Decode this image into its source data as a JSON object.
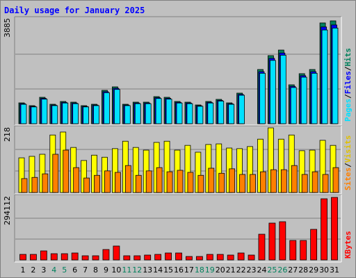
{
  "chart_data": [
    {
      "type": "bar",
      "title": "Daily usage for January 2025",
      "ylim": [
        0,
        3885
      ],
      "yticks": [
        3885
      ],
      "legend_separator": "/",
      "series": [
        {
          "name": "Hits",
          "color": "#00805c",
          "values": [
            777,
            673,
            984,
            725,
            829,
            803,
            673,
            725,
            1243,
            1373,
            725,
            803,
            803,
            1010,
            984,
            829,
            803,
            699,
            829,
            907,
            777,
            1140,
            0,
            2020,
            2538,
            2745,
            1450,
            1865,
            2020,
            3756,
            3833
          ]
        },
        {
          "name": "Files",
          "color": "#0000ff",
          "values": [
            746,
            646,
            945,
            696,
            796,
            771,
            646,
            696,
            1193,
            1318,
            696,
            771,
            771,
            970,
            945,
            796,
            771,
            671,
            796,
            871,
            746,
            1094,
            0,
            1939,
            2436,
            2635,
            1392,
            1790,
            1939,
            3606,
            3680
          ]
        },
        {
          "name": "Pages",
          "color": "#00e0ff",
          "values": [
            723,
            626,
            915,
            674,
            771,
            747,
            626,
            674,
            1156,
            1277,
            674,
            747,
            747,
            939,
            915,
            771,
            747,
            650,
            771,
            844,
            723,
            1060,
            0,
            1879,
            2360,
            2553,
            1349,
            1734,
            1879,
            3493,
            3565
          ]
        }
      ]
    },
    {
      "type": "bar",
      "ylim": [
        0,
        218
      ],
      "yticks": [
        218
      ],
      "legend_separator": "/",
      "series": [
        {
          "name": "Visits",
          "color": "#ffff00",
          "values": [
            117,
            122,
            129,
            194,
            204,
            152,
            108,
            126,
            119,
            148,
            173,
            152,
            143,
            169,
            173,
            143,
            159,
            136,
            162,
            164,
            150,
            148,
            155,
            180,
            218,
            180,
            194,
            141,
            143,
            176,
            159
          ]
        },
        {
          "name": "Sites",
          "color": "#ff8000",
          "values": [
            47,
            51,
            63,
            129,
            143,
            84,
            49,
            58,
            73,
            68,
            91,
            58,
            73,
            84,
            70,
            75,
            68,
            58,
            82,
            65,
            80,
            61,
            61,
            70,
            77,
            77,
            91,
            61,
            70,
            61,
            84
          ]
        }
      ]
    },
    {
      "type": "bar",
      "ylim": [
        0,
        294112
      ],
      "yticks": [
        294112
      ],
      "categories": [
        "1",
        "2",
        "3",
        "4",
        "5",
        "6",
        "7",
        "8",
        "9",
        "10",
        "11",
        "12",
        "13",
        "14",
        "15",
        "16",
        "17",
        "18",
        "19",
        "20",
        "21",
        "22",
        "23",
        "24",
        "25",
        "26",
        "27",
        "28",
        "29",
        "30",
        "31"
      ],
      "category_colors": [
        "#000000",
        "#000000",
        "#000000",
        "#00805c",
        "#00805c",
        "#000000",
        "#000000",
        "#000000",
        "#000000",
        "#000000",
        "#00805c",
        "#00805c",
        "#000000",
        "#000000",
        "#000000",
        "#000000",
        "#000000",
        "#00805c",
        "#00805c",
        "#000000",
        "#000000",
        "#000000",
        "#000000",
        "#000000",
        "#00805c",
        "#00805c",
        "#000000",
        "#000000",
        "#000000",
        "#000000",
        "#000000"
      ],
      "series": [
        {
          "name": "KBytes",
          "color": "#ff0000",
          "values": [
            26100,
            26100,
            42500,
            29400,
            29400,
            32700,
            19600,
            19600,
            49000,
            65400,
            19600,
            19600,
            22900,
            26100,
            32700,
            32700,
            16300,
            16300,
            26100,
            26100,
            22900,
            32700,
            22900,
            120900,
            173200,
            179700,
            91500,
            91500,
            143800,
            287600,
            294100
          ]
        }
      ]
    }
  ]
}
